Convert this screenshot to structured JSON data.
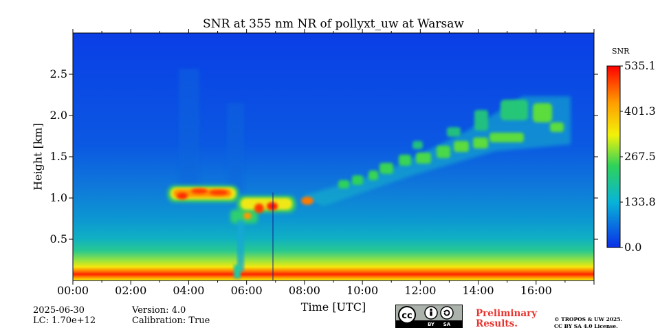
{
  "chart_data": {
    "type": "heatmap",
    "title": "SNR at 355 nm NR of pollyxt_uw at Warsaw",
    "xlabel": "Time [UTC]",
    "ylabel": "Height [km]",
    "xlim_hours": [
      0,
      18
    ],
    "ylim_km": [
      0,
      3
    ],
    "xticks": [
      "00:00",
      "02:00",
      "04:00",
      "06:00",
      "08:00",
      "10:00",
      "12:00",
      "14:00",
      "16:00"
    ],
    "yticks": [
      0.5,
      1.0,
      1.5,
      2.0,
      2.5
    ],
    "colorbar": {
      "label": "SNR",
      "min": 0.0,
      "max": 535.1,
      "ticks": [
        "0.0",
        "133.8",
        "267.5",
        "401.3",
        "535.1"
      ],
      "colors": [
        "#0a2fe8",
        "#08b4d8",
        "#2ed25a",
        "#f2f20a",
        "#ff9c00",
        "#ff0000"
      ]
    },
    "features": [
      {
        "name": "surface layer",
        "time_range_h": [
          0,
          18
        ],
        "height_km": [
          0.05,
          0.15
        ],
        "snr": 520
      },
      {
        "name": "boundary layer gradient",
        "time_range_h": [
          0,
          18
        ],
        "height_km": [
          0.15,
          0.4
        ],
        "snr": 300
      },
      {
        "name": "cloud layer 1",
        "time_range_h": [
          3.3,
          5.6
        ],
        "height_km": [
          1.0,
          1.1
        ],
        "snr": 500
      },
      {
        "name": "cloud layer 2",
        "time_range_h": [
          5.2,
          8.3
        ],
        "height_km": [
          0.8,
          1.0
        ],
        "snr": 480
      },
      {
        "name": "rising aerosol layer",
        "time_range_h": [
          8.3,
          17.2
        ],
        "height_km": [
          1.0,
          2.1
        ],
        "snr": 200
      }
    ]
  },
  "footer": {
    "date": "2025-06-30",
    "lc": "LC: 1.70e+12",
    "version": "Version: 4.0",
    "calibration": "Calibration: True",
    "preliminary_line1": "Preliminary",
    "preliminary_line2": "Results.",
    "copyright_line1": "© TROPOS & UW 2025.",
    "copyright_line2": "CC BY SA 4.0 License.",
    "cc_badge": {
      "cc": "cc",
      "by": "BY",
      "sa": "SA"
    }
  },
  "colors": {
    "preliminary": "#e8342e"
  }
}
